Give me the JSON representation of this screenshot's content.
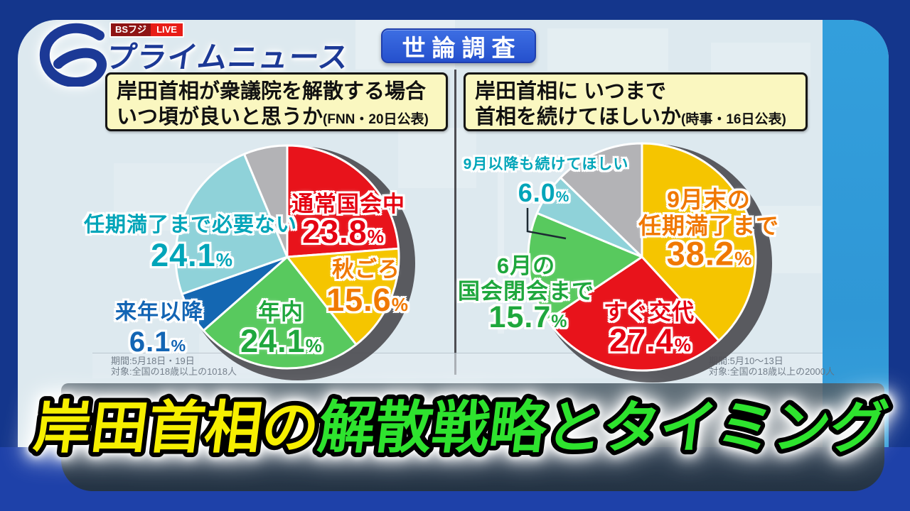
{
  "header": {
    "live_badge": {
      "channel": "BSフジ",
      "live": "LIVE"
    },
    "logo_text": "プライムニュース",
    "topic_badge": "世論調査"
  },
  "panels": [
    {
      "question_line1": "岸田首相が衆議院を解散する場合",
      "question_line2": "いつ頃が良いと思うか",
      "source": "(FNN・20日公表)",
      "survey_period": "期間:5月18日・19日",
      "survey_target": "対象:全国の18歳以上の1018人"
    },
    {
      "question_line1": "岸田首相に いつまで",
      "question_line2": "首相を続けてほしいか",
      "source": "(時事・16日公表)",
      "survey_period": "期間:5月10～13日",
      "survey_target": "対象:全国の18歳以上の2000人"
    }
  ],
  "chart_data": [
    {
      "type": "pie",
      "title": "岸田首相が衆議院を解散する場合いつ頃が良いと思うか",
      "source": "FNN・20日公表",
      "slices": [
        {
          "label": "通常国会中",
          "value": 23.8,
          "color": "#e8131b",
          "text_color": "#e50012"
        },
        {
          "label": "秋ごろ",
          "value": 15.6,
          "color": "#f5c500",
          "text_color": "#f07800"
        },
        {
          "label": "年内",
          "value": 24.1,
          "color": "#58c95e",
          "text_color": "#1fa73d"
        },
        {
          "label": "来年以降",
          "value": 6.1,
          "color": "#1467b2",
          "text_color": "#1365b4"
        },
        {
          "label": "任期満了まで必要ない",
          "value": 24.1,
          "color": "#8fd2d9",
          "text_color": "#00a5b9"
        },
        {
          "label": "",
          "value": 6.3,
          "color": "#b3b3b6",
          "text_color": ""
        }
      ]
    },
    {
      "type": "pie",
      "title": "岸田首相にいつまで首相を続けてほしいか",
      "source": "時事・16日公表",
      "slices": [
        {
          "label": "9月末の\n任期満了まで",
          "value": 38.2,
          "color": "#f5c500",
          "text_color": "#f07800"
        },
        {
          "label": "すぐ交代",
          "value": 27.4,
          "color": "#e8131b",
          "text_color": "#e50012"
        },
        {
          "label": "6月の\n国会閉会まで",
          "value": 15.7,
          "color": "#58c95e",
          "text_color": "#1fa73d"
        },
        {
          "label": "9月以降も続けてほしい",
          "value": 6.0,
          "color": "#8fd2d9",
          "text_color": "#00a5b9"
        },
        {
          "label": "",
          "value": 12.7,
          "color": "#b3b3b6",
          "text_color": ""
        }
      ]
    }
  ],
  "banner": {
    "highlight": "岸田首相の",
    "rest": "解散戦略とタイミング"
  }
}
